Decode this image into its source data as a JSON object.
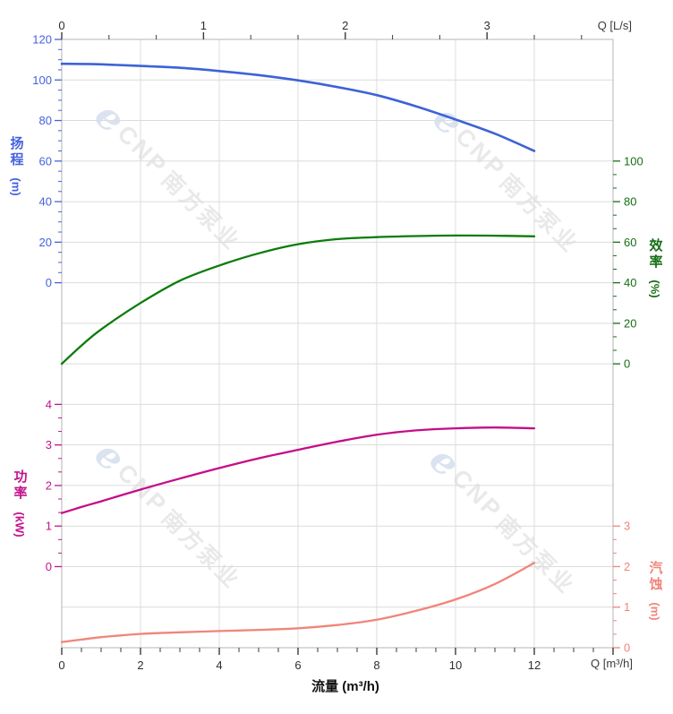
{
  "watermark": {
    "logo": "e",
    "brand": "CNP",
    "brand_cn": "南方泵业"
  },
  "corner_labels": {
    "top_right": "Q [L/s]",
    "bottom_right": "Q [m³/h]"
  },
  "bottom_title": "流量 (m³/h)",
  "axis_titles": {
    "head": {
      "name": "扬程",
      "unit": "(m)"
    },
    "efficiency": {
      "name": "效率",
      "unit": "(%)"
    },
    "power": {
      "name": "功率",
      "unit": "(kW)"
    },
    "npsh": {
      "name": "汽蚀",
      "unit": "(m)"
    }
  },
  "colors": {
    "head": "#3c63d6",
    "head_label": "#4462dd",
    "efficiency": "#0b7c0b",
    "efficiency_label": "#156e15",
    "power": "#c50d88",
    "power_label": "#c2138c",
    "npsh": "#f0857a",
    "npsh_label": "#f0857a",
    "grid": "#dcdcdc",
    "border": "#c0c0c0",
    "tick_dark": "#3a3a3a",
    "label_dark": "#2e2e2e"
  },
  "chart_data": {
    "type": "line",
    "title": "",
    "grid": true,
    "x_axis": {
      "bottom": {
        "label": "流量 (m³/h)",
        "unit": "m³/h",
        "ticks": [
          0,
          2,
          4,
          6,
          8,
          10,
          12
        ],
        "range": [
          0,
          14
        ],
        "minor_step": 0.5
      },
      "top": {
        "label": "Q [L/s]",
        "unit": "L/s",
        "ticks": [
          0,
          1,
          2,
          3
        ],
        "range": [
          0,
          3.89
        ],
        "minor_step": 0.3333
      }
    },
    "y_axes": {
      "head": {
        "label": "扬程 (m)",
        "side": "left",
        "ticks": [
          120,
          100,
          80,
          60,
          40,
          20,
          0
        ],
        "range_shown": [
          0,
          120
        ]
      },
      "efficiency": {
        "label": "效率 (%)",
        "side": "right",
        "ticks": [
          100,
          80,
          60,
          40,
          20,
          0
        ],
        "range_shown": [
          0,
          100
        ]
      },
      "power": {
        "label": "功率 (kW)",
        "side": "left",
        "ticks": [
          4,
          3,
          2,
          1,
          0
        ],
        "range_shown": [
          0,
          4
        ]
      },
      "npsh": {
        "label": "汽蚀 (m)",
        "side": "right",
        "ticks": [
          3,
          2,
          1,
          0
        ],
        "range_shown": [
          0,
          3
        ]
      }
    },
    "x": [
      0,
      0.5,
      1,
      2,
      3,
      4,
      5,
      6,
      7,
      8,
      9,
      10,
      11,
      12
    ],
    "series": [
      {
        "id": "head",
        "name": "扬程 H (m)",
        "axis": "head",
        "values": [
          108,
          107.9,
          107.7,
          106.9,
          106.0,
          104.4,
          102.4,
          99.8,
          96.5,
          92.5,
          87,
          80.5,
          73.5,
          65
        ]
      },
      {
        "id": "efficiency",
        "name": "效率 η (%)",
        "axis": "efficiency",
        "values": [
          0,
          9,
          17,
          30,
          41,
          48.5,
          54.5,
          59,
          61.5,
          62.5,
          63,
          63.3,
          63.2,
          62.9
        ]
      },
      {
        "id": "power",
        "name": "功率 P (kW)",
        "axis": "power",
        "values": [
          1.32,
          1.47,
          1.61,
          1.9,
          2.17,
          2.43,
          2.67,
          2.88,
          3.08,
          3.25,
          3.36,
          3.41,
          3.43,
          3.41
        ]
      },
      {
        "id": "npsh",
        "name": "汽蚀 NPSH (m)",
        "axis": "npsh",
        "values": [
          0.14,
          0.2,
          0.26,
          0.34,
          0.38,
          0.41,
          0.44,
          0.48,
          0.56,
          0.69,
          0.91,
          1.19,
          1.57,
          2.09
        ]
      }
    ]
  }
}
